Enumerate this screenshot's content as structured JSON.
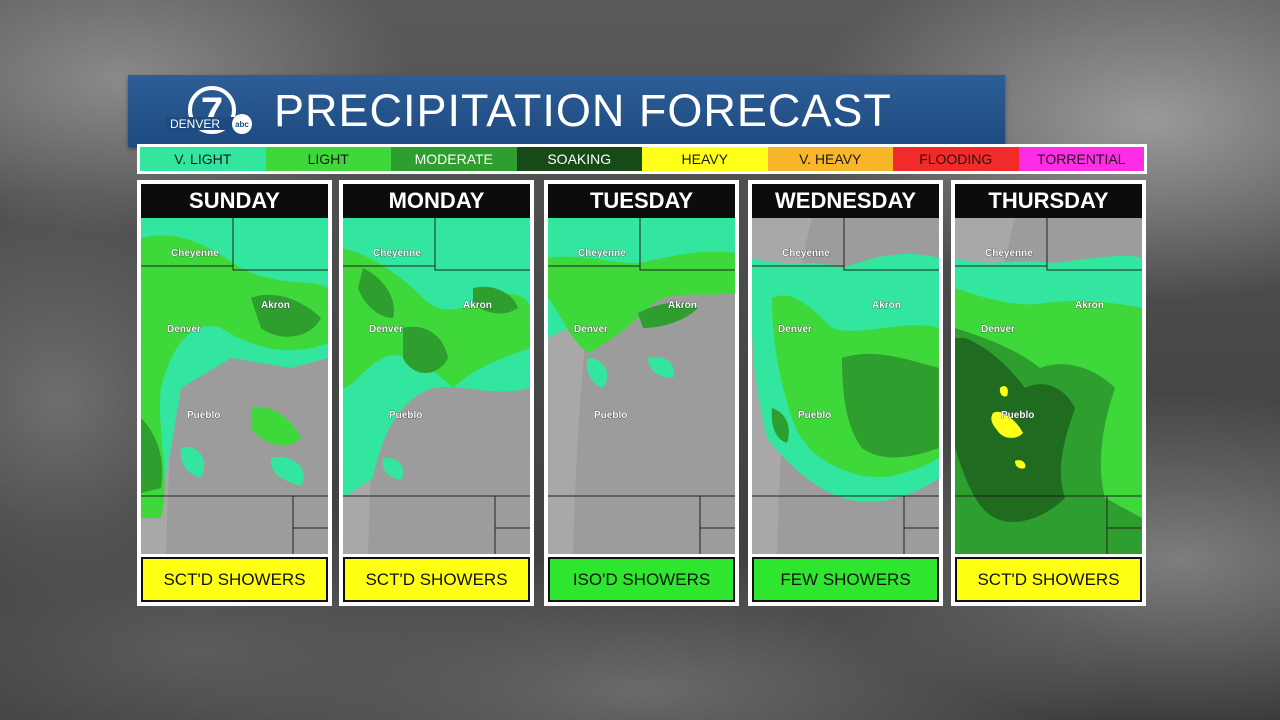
{
  "header": {
    "logo_number": "7",
    "logo_text": "DENVER",
    "logo_badge": "abc",
    "title": "PRECIPITATION FORECAST"
  },
  "legend": [
    {
      "label": "V. LIGHT",
      "color": "#33e6a0",
      "text_color": "#1a1a1a"
    },
    {
      "label": "LIGHT",
      "color": "#3ed83a",
      "text_color": "#1a1a1a"
    },
    {
      "label": "MODERATE",
      "color": "#2e9e2e",
      "text_color": "#ffffff"
    },
    {
      "label": "SOAKING",
      "color": "#174a17",
      "text_color": "#ffffff"
    },
    {
      "label": "HEAVY",
      "color": "#ffff1a",
      "text_color": "#1a1a1a"
    },
    {
      "label": "V. HEAVY",
      "color": "#f7b52a",
      "text_color": "#1a1a1a"
    },
    {
      "label": "FLOODING",
      "color": "#f22a2a",
      "text_color": "#1a1a1a"
    },
    {
      "label": "TORRENTIAL",
      "color": "#ff2ee6",
      "text_color": "#1a1a1a"
    }
  ],
  "cities": {
    "cheyenne": "Cheyenne",
    "akron": "Akron",
    "denver": "Denver",
    "pueblo": "Pueblo"
  },
  "days": [
    {
      "name": "SUNDAY",
      "summary": "SCT'D SHOWERS",
      "summary_color": "#ffff14",
      "coverage": "scattered"
    },
    {
      "name": "MONDAY",
      "summary": "SCT'D SHOWERS",
      "summary_color": "#ffff14",
      "coverage": "scattered"
    },
    {
      "name": "TUESDAY",
      "summary": "ISO'D SHOWERS",
      "summary_color": "#2ee62e",
      "coverage": "isolated"
    },
    {
      "name": "WEDNESDAY",
      "summary": "FEW SHOWERS",
      "summary_color": "#2ee62e",
      "coverage": "few"
    },
    {
      "name": "THURSDAY",
      "summary": "SCT'D SHOWERS",
      "summary_color": "#ffff14",
      "coverage": "scattered"
    }
  ]
}
